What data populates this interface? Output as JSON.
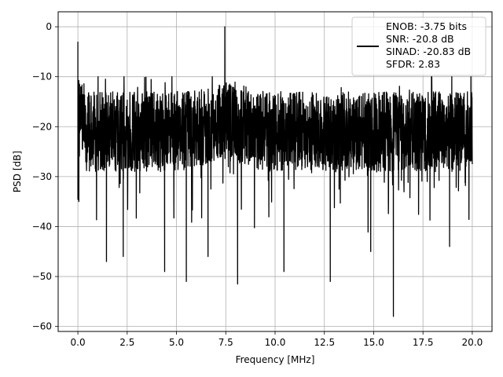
{
  "chart_data": {
    "type": "line",
    "title": "",
    "xlabel": "Frequency [MHz]",
    "ylabel": "PSD [dB]",
    "xlim": [
      -1,
      21
    ],
    "ylim": [
      -61,
      3
    ],
    "xticks": [
      0.0,
      2.5,
      5.0,
      7.5,
      10.0,
      12.5,
      15.0,
      17.5,
      20.0
    ],
    "xtick_labels": [
      "0.0",
      "2.5",
      "5.0",
      "7.5",
      "10.0",
      "12.5",
      "15.0",
      "17.5",
      "20.0"
    ],
    "yticks": [
      0,
      -10,
      -20,
      -30,
      -40,
      -50,
      -60
    ],
    "ytick_labels": [
      "0",
      "−10",
      "−20",
      "−30",
      "−40",
      "−50",
      "−60"
    ],
    "grid": true,
    "legend_position": "top-right",
    "series": [
      {
        "color": "#000000",
        "description": "dense noisy power spectral density trace, mean about -20 dB",
        "features": [
          {
            "x": 0.0,
            "y": -3
          },
          {
            "x": 0.05,
            "y": -35
          },
          {
            "x": 1.45,
            "y": -47
          },
          {
            "x": 2.3,
            "y": -46
          },
          {
            "x": 4.4,
            "y": -49
          },
          {
            "x": 5.5,
            "y": -51
          },
          {
            "x": 6.6,
            "y": -46
          },
          {
            "x": 7.45,
            "y": 0
          },
          {
            "x": 8.1,
            "y": -51.5
          },
          {
            "x": 10.45,
            "y": -49
          },
          {
            "x": 12.8,
            "y": -51
          },
          {
            "x": 14.85,
            "y": -45
          },
          {
            "x": 16.0,
            "y": -58
          },
          {
            "x": 18.85,
            "y": -44
          }
        ]
      }
    ],
    "legend": {
      "lines": [
        "ENOB: -3.75 bits",
        "SNR: -20.8 dB",
        "SINAD: -20.83 dB",
        "SFDR: 2.83"
      ]
    }
  }
}
